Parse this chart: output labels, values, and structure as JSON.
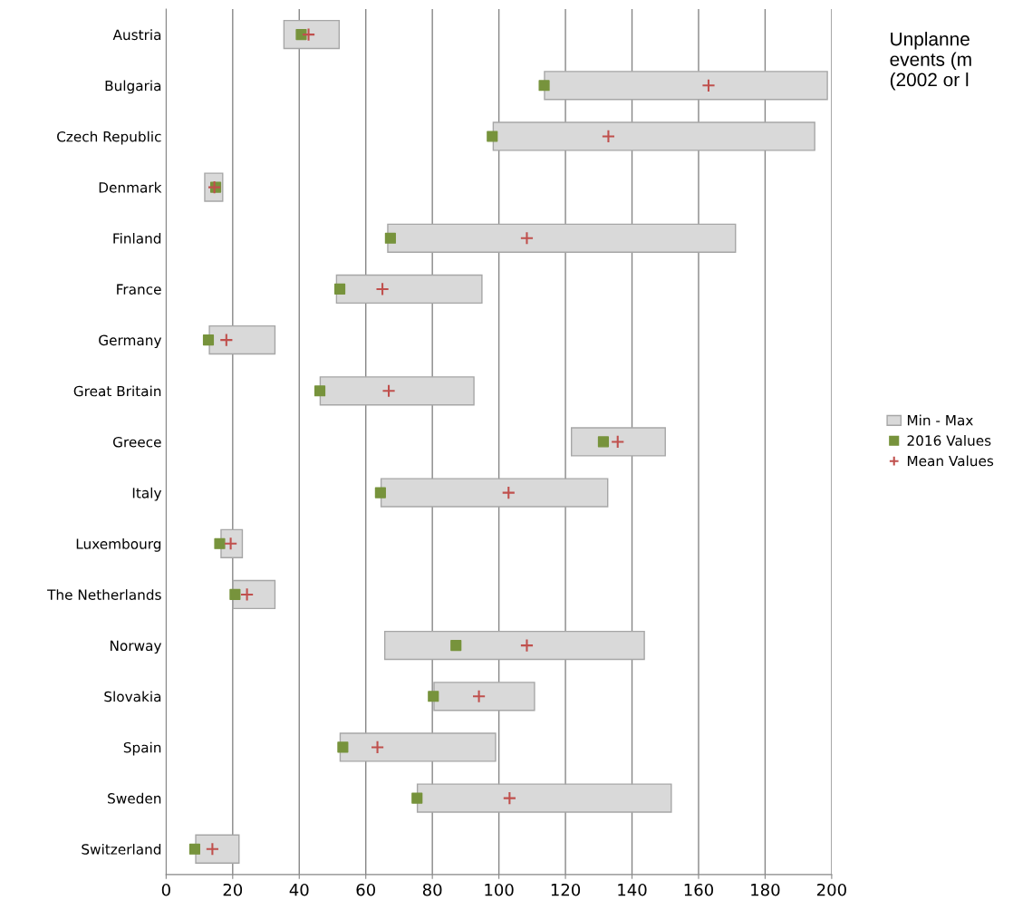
{
  "chart_data": {
    "type": "bar",
    "orientation": "horizontal",
    "categories": [
      "Austria",
      "Bulgaria",
      "Czech Republic",
      "Denmark",
      "Finland",
      "France",
      "Germany",
      "Great Britain",
      "Greece",
      "Italy",
      "Luxembourg",
      "The Netherlands",
      "Norway",
      "Slovakia",
      "Spain",
      "Sweden",
      "Switzerland"
    ],
    "series": [
      {
        "name": "Min - Max",
        "color": "#d9d9d9",
        "base": [
          35.4,
          113.7,
          98.3,
          11.6,
          66.6,
          51.2,
          13.0,
          46.3,
          121.8,
          64.6,
          16.5,
          20.1,
          65.7,
          80.5,
          52.3,
          75.5,
          8.9
        ],
        "values": [
          16.6,
          85.0,
          96.6,
          5.4,
          104.5,
          43.7,
          19.7,
          46.2,
          28.2,
          68.1,
          6.4,
          12.6,
          78.0,
          30.2,
          46.7,
          76.3,
          13.0
        ]
      },
      {
        "name": "2016 Values",
        "type": "scatter",
        "marker": "square",
        "color": "#77933c",
        "values": [
          40.6,
          113.6,
          98.0,
          14.9,
          67.4,
          52.2,
          12.7,
          46.2,
          131.4,
          64.4,
          16.1,
          20.7,
          87.1,
          80.3,
          53.1,
          75.4,
          8.6
        ]
      },
      {
        "name": "Mean Values",
        "type": "scatter",
        "marker": "cross",
        "color": "#c0504d",
        "values": [
          42.8,
          163.0,
          132.9,
          14.5,
          108.4,
          65.0,
          18.1,
          66.9,
          135.7,
          102.9,
          19.4,
          24.3,
          108.4,
          94.0,
          63.5,
          103.2,
          13.9
        ]
      }
    ],
    "xlim": [
      0,
      200
    ],
    "xticks": [
      0,
      20,
      40,
      60,
      80,
      100,
      120,
      140,
      160,
      180,
      200
    ],
    "grid": "x",
    "legend": "right",
    "annotations": [
      "Unplanne\nevents (m\n(2002 or l"
    ]
  }
}
